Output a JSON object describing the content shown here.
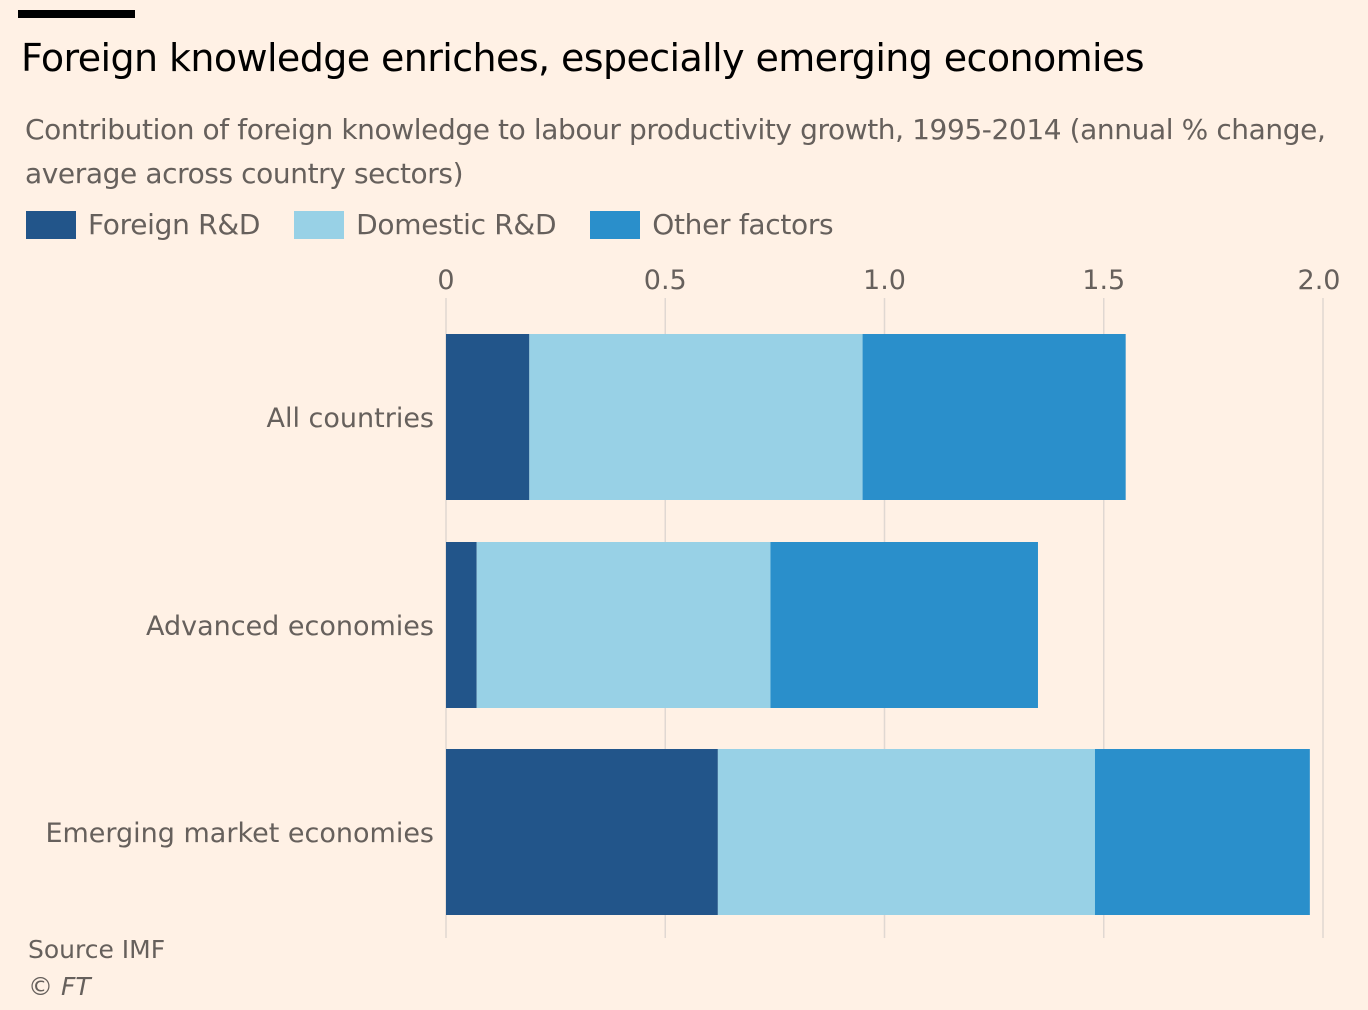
{
  "header": {
    "title": "Foreign knowledge enriches, especially emerging economies",
    "subtitle": "Contribution of foreign knowledge to labour productivity growth, 1995-2014 (annual % change, average across country sectors)"
  },
  "footer": {
    "source": "Source IMF",
    "copyright": "© FT"
  },
  "colors": {
    "background": "#fff1e5",
    "foreign_rd": "#22558a",
    "domestic_rd": "#98d1e6",
    "other_factors": "#2a8fcb",
    "gridline": "#e0d8d2"
  },
  "chart_data": {
    "type": "bar",
    "orientation": "horizontal",
    "stacked": true,
    "title": "Foreign knowledge enriches, especially emerging economies",
    "subtitle": "Contribution of foreign knowledge to labour productivity growth, 1995-2014 (annual % change, average across country sectors)",
    "xlabel": "",
    "ylabel": "",
    "xlim": [
      0,
      2.0
    ],
    "xticks": [
      0,
      0.5,
      1.0,
      1.5,
      2.0
    ],
    "xtick_labels": [
      "0",
      "0.5",
      "1.0",
      "1.5",
      "2.0"
    ],
    "x_axis_position": "top",
    "grid": true,
    "legend_position": "top-left",
    "categories": [
      "All countries",
      "Advanced economies",
      "Emerging market economies"
    ],
    "series": [
      {
        "name": "Foreign R&D",
        "color": "#22558a",
        "values": [
          0.19,
          0.07,
          0.62
        ]
      },
      {
        "name": "Domestic R&D",
        "color": "#98d1e6",
        "values": [
          0.76,
          0.67,
          0.86
        ]
      },
      {
        "name": "Other factors",
        "color": "#2a8fcb",
        "values": [
          0.6,
          0.61,
          0.49
        ]
      }
    ]
  }
}
